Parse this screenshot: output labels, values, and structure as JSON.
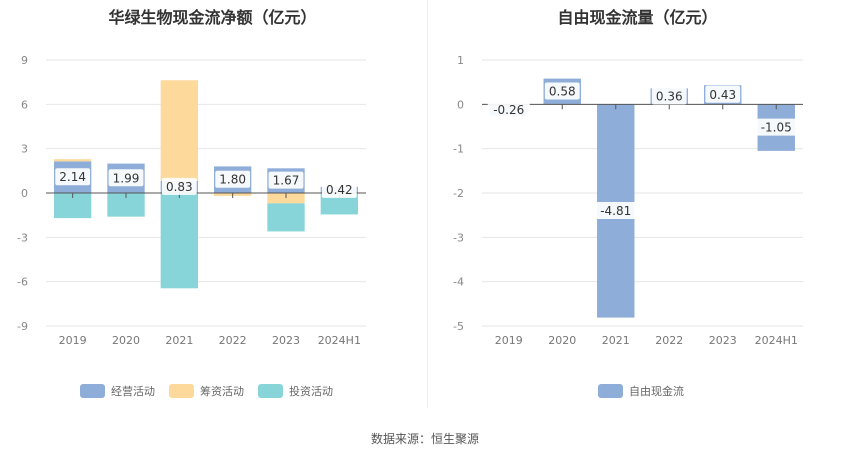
{
  "chart_data": [
    {
      "type": "bar",
      "stacked": true,
      "title": "华绿生物现金流净额（亿元）",
      "categories": [
        "2019",
        "2020",
        "2021",
        "2022",
        "2023",
        "2024H1"
      ],
      "ylim": [
        -9,
        9
      ],
      "yticks": [
        -9,
        -6,
        -3,
        0,
        3,
        6,
        9
      ],
      "grid": true,
      "legend_position": "bottom",
      "series": [
        {
          "name": "经营活动",
          "color": "#8fadd9",
          "values": [
            2.14,
            1.99,
            0.83,
            1.8,
            1.67,
            0.42
          ],
          "labels": [
            "2.14",
            "1.99",
            "0.83",
            "1.80",
            "1.67",
            "0.42"
          ]
        },
        {
          "name": "筹资活动",
          "color": "#fdd99b",
          "values": [
            0.15,
            0.0,
            6.8,
            -0.2,
            -0.7,
            0.0
          ]
        },
        {
          "name": "投资活动",
          "color": "#88d5d9",
          "values": [
            -1.7,
            -1.6,
            -6.45,
            0.0,
            -1.9,
            -1.45
          ]
        }
      ]
    },
    {
      "type": "bar",
      "title": "自由现金流量（亿元）",
      "categories": [
        "2019",
        "2020",
        "2021",
        "2022",
        "2023",
        "2024H1"
      ],
      "ylim": [
        -5,
        1
      ],
      "yticks": [
        -5,
        -4,
        -3,
        -2,
        -1,
        0,
        1
      ],
      "grid": true,
      "legend_position": "bottom",
      "series": [
        {
          "name": "自由现金流",
          "color": "#8fadd9",
          "values": [
            -0.26,
            0.58,
            -4.81,
            0.36,
            0.43,
            -1.05
          ],
          "labels": [
            "-0.26",
            "0.58",
            "-4.81",
            "0.36",
            "0.43",
            "-1.05"
          ]
        }
      ]
    }
  ],
  "source_text": "数据来源：恒生聚源"
}
